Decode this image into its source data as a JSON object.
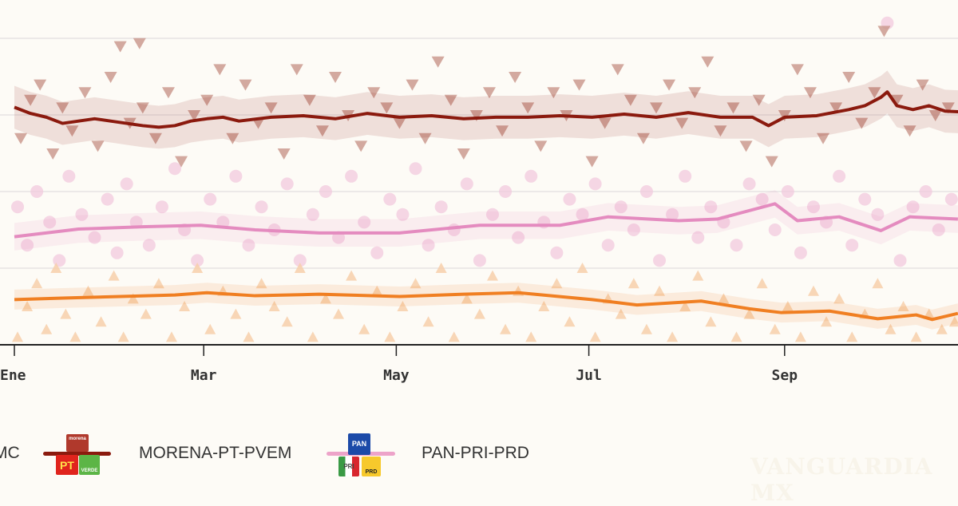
{
  "chart_data": {
    "type": "line",
    "title": "",
    "xlabel": "",
    "ylabel": "",
    "x_unit": "day of year",
    "xlim": [
      -4,
      294
    ],
    "ylim": [
      20,
      65
    ],
    "gridlines": [
      30,
      40,
      50,
      60
    ],
    "grid": true,
    "xticks": [
      {
        "label": "Ene",
        "day": 0
      },
      {
        "label": "Mar",
        "day": 59
      },
      {
        "label": "May",
        "day": 119
      },
      {
        "label": "Jul",
        "day": 179
      },
      {
        "label": "Sep",
        "day": 240
      }
    ],
    "series": [
      {
        "name": "MORENA-PT-PVEM",
        "color": "#8b1a0e",
        "point_color": "#c8958a",
        "marker": "triangle-down",
        "ci": 2.8,
        "line": [
          [
            0,
            51.0
          ],
          [
            5,
            50.2
          ],
          [
            10,
            49.7
          ],
          [
            15,
            48.9
          ],
          [
            20,
            49.2
          ],
          [
            25,
            49.5
          ],
          [
            30,
            49.2
          ],
          [
            35,
            48.9
          ],
          [
            40,
            48.6
          ],
          [
            45,
            48.4
          ],
          [
            50,
            48.6
          ],
          [
            55,
            49.2
          ],
          [
            60,
            49.5
          ],
          [
            65,
            49.7
          ],
          [
            70,
            49.2
          ],
          [
            80,
            49.7
          ],
          [
            90,
            49.9
          ],
          [
            100,
            49.5
          ],
          [
            110,
            50.2
          ],
          [
            120,
            49.7
          ],
          [
            130,
            49.9
          ],
          [
            140,
            49.5
          ],
          [
            150,
            49.7
          ],
          [
            160,
            49.7
          ],
          [
            170,
            49.9
          ],
          [
            180,
            49.7
          ],
          [
            190,
            50.1
          ],
          [
            200,
            49.7
          ],
          [
            210,
            50.3
          ],
          [
            220,
            49.7
          ],
          [
            230,
            49.7
          ],
          [
            235,
            48.6
          ],
          [
            240,
            49.7
          ],
          [
            250,
            49.9
          ],
          [
            260,
            50.7
          ],
          [
            265,
            51.2
          ],
          [
            270,
            52.3
          ],
          [
            272,
            53.0
          ],
          [
            275,
            51.2
          ],
          [
            280,
            50.7
          ],
          [
            285,
            51.2
          ],
          [
            290,
            50.5
          ],
          [
            295,
            50.4
          ]
        ],
        "points": [
          [
            2,
            47
          ],
          [
            5,
            52
          ],
          [
            8,
            54
          ],
          [
            12,
            45
          ],
          [
            15,
            51
          ],
          [
            18,
            48
          ],
          [
            22,
            53
          ],
          [
            26,
            46
          ],
          [
            30,
            55
          ],
          [
            33,
            59
          ],
          [
            36,
            49
          ],
          [
            39,
            59.4
          ],
          [
            40,
            51
          ],
          [
            44,
            47
          ],
          [
            48,
            53
          ],
          [
            52,
            44
          ],
          [
            56,
            50
          ],
          [
            60,
            52
          ],
          [
            64,
            56
          ],
          [
            68,
            47
          ],
          [
            72,
            54
          ],
          [
            76,
            49
          ],
          [
            80,
            51
          ],
          [
            84,
            45
          ],
          [
            88,
            56
          ],
          [
            92,
            52
          ],
          [
            96,
            48
          ],
          [
            100,
            55
          ],
          [
            104,
            50
          ],
          [
            108,
            46
          ],
          [
            112,
            53
          ],
          [
            116,
            51
          ],
          [
            120,
            49
          ],
          [
            124,
            54
          ],
          [
            128,
            47
          ],
          [
            132,
            57
          ],
          [
            136,
            52
          ],
          [
            140,
            45
          ],
          [
            144,
            50
          ],
          [
            148,
            53
          ],
          [
            152,
            48
          ],
          [
            156,
            55
          ],
          [
            160,
            51
          ],
          [
            164,
            46
          ],
          [
            168,
            53
          ],
          [
            172,
            50
          ],
          [
            176,
            54
          ],
          [
            180,
            44
          ],
          [
            184,
            49
          ],
          [
            188,
            56
          ],
          [
            192,
            52
          ],
          [
            196,
            47
          ],
          [
            200,
            51
          ],
          [
            204,
            54
          ],
          [
            208,
            49
          ],
          [
            212,
            53
          ],
          [
            216,
            57
          ],
          [
            220,
            48
          ],
          [
            224,
            51
          ],
          [
            228,
            46
          ],
          [
            232,
            52
          ],
          [
            236,
            44
          ],
          [
            240,
            50
          ],
          [
            244,
            56
          ],
          [
            248,
            53
          ],
          [
            252,
            47
          ],
          [
            256,
            51
          ],
          [
            260,
            55
          ],
          [
            264,
            49
          ],
          [
            268,
            53
          ],
          [
            271,
            61
          ],
          [
            275,
            52
          ],
          [
            279,
            48
          ],
          [
            283,
            54
          ],
          [
            287,
            50
          ],
          [
            291,
            51
          ]
        ]
      },
      {
        "name": "PAN-PRI-PRD",
        "color": "#e48bbf",
        "point_color": "#f2c9dd",
        "marker": "circle",
        "ci": 1.8,
        "line": [
          [
            0,
            34.1
          ],
          [
            20,
            35.1
          ],
          [
            40,
            35.4
          ],
          [
            58,
            35.6
          ],
          [
            75,
            35.0
          ],
          [
            95,
            34.6
          ],
          [
            120,
            34.6
          ],
          [
            145,
            35.6
          ],
          [
            170,
            35.6
          ],
          [
            185,
            36.7
          ],
          [
            207,
            36.2
          ],
          [
            219,
            36.4
          ],
          [
            237,
            38.4
          ],
          [
            244,
            36.2
          ],
          [
            257,
            36.7
          ],
          [
            270,
            34.9
          ],
          [
            279,
            36.7
          ],
          [
            294,
            36.4
          ]
        ],
        "points": [
          [
            1,
            38
          ],
          [
            4,
            33
          ],
          [
            7,
            40
          ],
          [
            11,
            36
          ],
          [
            14,
            31
          ],
          [
            17,
            42
          ],
          [
            21,
            37
          ],
          [
            25,
            34
          ],
          [
            29,
            39
          ],
          [
            32,
            32
          ],
          [
            35,
            41
          ],
          [
            38,
            36
          ],
          [
            42,
            33
          ],
          [
            46,
            38
          ],
          [
            50,
            43
          ],
          [
            53,
            35
          ],
          [
            57,
            31
          ],
          [
            61,
            39
          ],
          [
            65,
            36
          ],
          [
            69,
            42
          ],
          [
            73,
            33
          ],
          [
            77,
            38
          ],
          [
            81,
            35
          ],
          [
            85,
            41
          ],
          [
            89,
            31
          ],
          [
            93,
            37
          ],
          [
            97,
            40
          ],
          [
            101,
            34
          ],
          [
            105,
            42
          ],
          [
            109,
            36
          ],
          [
            113,
            32
          ],
          [
            117,
            39
          ],
          [
            121,
            37
          ],
          [
            125,
            43
          ],
          [
            129,
            33
          ],
          [
            133,
            38
          ],
          [
            137,
            35
          ],
          [
            141,
            41
          ],
          [
            145,
            31
          ],
          [
            149,
            37
          ],
          [
            153,
            40
          ],
          [
            157,
            34
          ],
          [
            161,
            42
          ],
          [
            165,
            36
          ],
          [
            169,
            32
          ],
          [
            173,
            39
          ],
          [
            177,
            37
          ],
          [
            181,
            41
          ],
          [
            185,
            33
          ],
          [
            189,
            38
          ],
          [
            193,
            35
          ],
          [
            197,
            40
          ],
          [
            201,
            31
          ],
          [
            205,
            37
          ],
          [
            209,
            42
          ],
          [
            213,
            34
          ],
          [
            217,
            38
          ],
          [
            221,
            36
          ],
          [
            225,
            33
          ],
          [
            229,
            41
          ],
          [
            233,
            39
          ],
          [
            237,
            35
          ],
          [
            241,
            40
          ],
          [
            245,
            32
          ],
          [
            249,
            38
          ],
          [
            253,
            36
          ],
          [
            257,
            42
          ],
          [
            261,
            33
          ],
          [
            265,
            39
          ],
          [
            269,
            37
          ],
          [
            272,
            62
          ],
          [
            276,
            31
          ],
          [
            280,
            38
          ],
          [
            284,
            40
          ],
          [
            288,
            35
          ],
          [
            292,
            39
          ]
        ]
      },
      {
        "name": "MC",
        "color": "#f07f22",
        "point_color": "#f7cfaa",
        "marker": "triangle-up",
        "ci": 1.3,
        "line": [
          [
            0,
            25.9
          ],
          [
            15,
            26.1
          ],
          [
            33,
            26.3
          ],
          [
            50,
            26.5
          ],
          [
            60,
            26.8
          ],
          [
            75,
            26.4
          ],
          [
            95,
            26.6
          ],
          [
            120,
            26.3
          ],
          [
            140,
            26.6
          ],
          [
            157,
            26.8
          ],
          [
            180,
            25.9
          ],
          [
            194,
            25.2
          ],
          [
            214,
            25.7
          ],
          [
            229,
            24.7
          ],
          [
            239,
            24.2
          ],
          [
            254,
            24.4
          ],
          [
            269,
            23.4
          ],
          [
            281,
            23.9
          ],
          [
            286,
            23.3
          ],
          [
            294,
            24.1
          ]
        ],
        "points": [
          [
            1,
            21
          ],
          [
            4,
            25
          ],
          [
            7,
            28
          ],
          [
            10,
            22
          ],
          [
            13,
            30
          ],
          [
            16,
            24
          ],
          [
            19,
            21
          ],
          [
            23,
            27
          ],
          [
            27,
            23
          ],
          [
            31,
            29
          ],
          [
            34,
            21
          ],
          [
            37,
            26
          ],
          [
            41,
            24
          ],
          [
            45,
            28
          ],
          [
            49,
            21
          ],
          [
            53,
            25
          ],
          [
            57,
            30
          ],
          [
            61,
            22
          ],
          [
            65,
            27
          ],
          [
            69,
            24
          ],
          [
            73,
            21
          ],
          [
            77,
            28
          ],
          [
            81,
            25
          ],
          [
            85,
            23
          ],
          [
            89,
            30
          ],
          [
            93,
            21
          ],
          [
            97,
            26
          ],
          [
            101,
            24
          ],
          [
            105,
            29
          ],
          [
            109,
            22
          ],
          [
            113,
            27
          ],
          [
            117,
            21
          ],
          [
            121,
            25
          ],
          [
            125,
            28
          ],
          [
            129,
            23
          ],
          [
            133,
            30
          ],
          [
            137,
            21
          ],
          [
            141,
            26
          ],
          [
            145,
            24
          ],
          [
            149,
            29
          ],
          [
            153,
            22
          ],
          [
            157,
            27
          ],
          [
            161,
            21
          ],
          [
            165,
            25
          ],
          [
            169,
            28
          ],
          [
            173,
            23
          ],
          [
            177,
            30
          ],
          [
            181,
            21
          ],
          [
            185,
            26
          ],
          [
            189,
            24
          ],
          [
            193,
            28
          ],
          [
            197,
            22
          ],
          [
            201,
            27
          ],
          [
            205,
            21
          ],
          [
            209,
            25
          ],
          [
            213,
            29
          ],
          [
            217,
            23
          ],
          [
            221,
            26
          ],
          [
            225,
            21
          ],
          [
            229,
            24
          ],
          [
            233,
            28
          ],
          [
            237,
            22
          ],
          [
            241,
            25
          ],
          [
            245,
            21
          ],
          [
            249,
            27
          ],
          [
            253,
            23
          ],
          [
            257,
            26
          ],
          [
            261,
            21
          ],
          [
            265,
            24
          ],
          [
            269,
            28
          ],
          [
            273,
            22
          ],
          [
            277,
            25
          ],
          [
            281,
            21
          ],
          [
            285,
            24
          ],
          [
            289,
            22
          ],
          [
            293,
            23
          ]
        ]
      }
    ],
    "legend": "bottom"
  },
  "legend": {
    "items": [
      {
        "label": "MC",
        "color": "#f07f22"
      },
      {
        "label": "MORENA-PT-PVEM",
        "color": "#8b1a0e",
        "logo": [
          "morena",
          "PT",
          "VERDE"
        ]
      },
      {
        "label": "PAN-PRI-PRD",
        "color": "#e48bbf",
        "logo": [
          "PAN",
          "PRI",
          "PRD"
        ]
      }
    ]
  },
  "watermark": "VANGUARDIA MX"
}
